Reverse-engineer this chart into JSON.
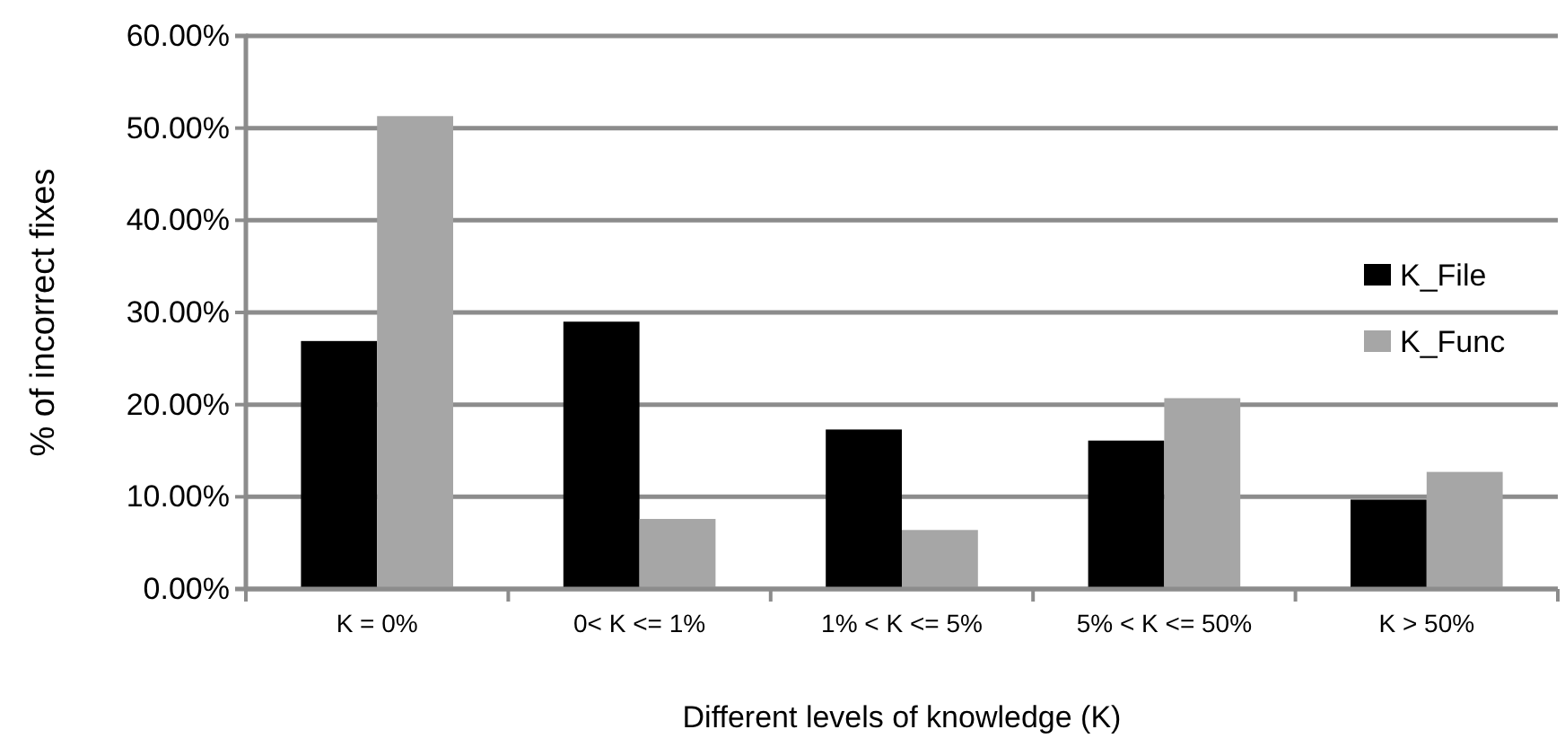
{
  "chart_data": {
    "type": "bar",
    "xlabel": "Different levels of knowledge (K)",
    "ylabel": "% of incorrect fixes",
    "categories": [
      "K = 0%",
      "0< K <= 1%",
      "1% < K <= 5%",
      "5% < K <= 50%",
      "K > 50%"
    ],
    "series": [
      {
        "name": "K_File",
        "color": "#000000",
        "values": [
          26.9,
          29.0,
          17.3,
          16.1,
          9.7
        ]
      },
      {
        "name": "K_Func",
        "color": "#a6a6a6",
        "values": [
          51.3,
          7.6,
          6.4,
          20.7,
          12.7
        ]
      }
    ],
    "ylim": [
      0,
      60
    ],
    "yticks": [
      {
        "value": 0,
        "label": "0.00%"
      },
      {
        "value": 10,
        "label": "10.00%"
      },
      {
        "value": 20,
        "label": "20.00%"
      },
      {
        "value": 30,
        "label": "30.00%"
      },
      {
        "value": 40,
        "label": "40.00%"
      },
      {
        "value": 50,
        "label": "50.00%"
      },
      {
        "value": 60,
        "label": "60.00%"
      }
    ],
    "grid": "y",
    "legend": "right"
  }
}
